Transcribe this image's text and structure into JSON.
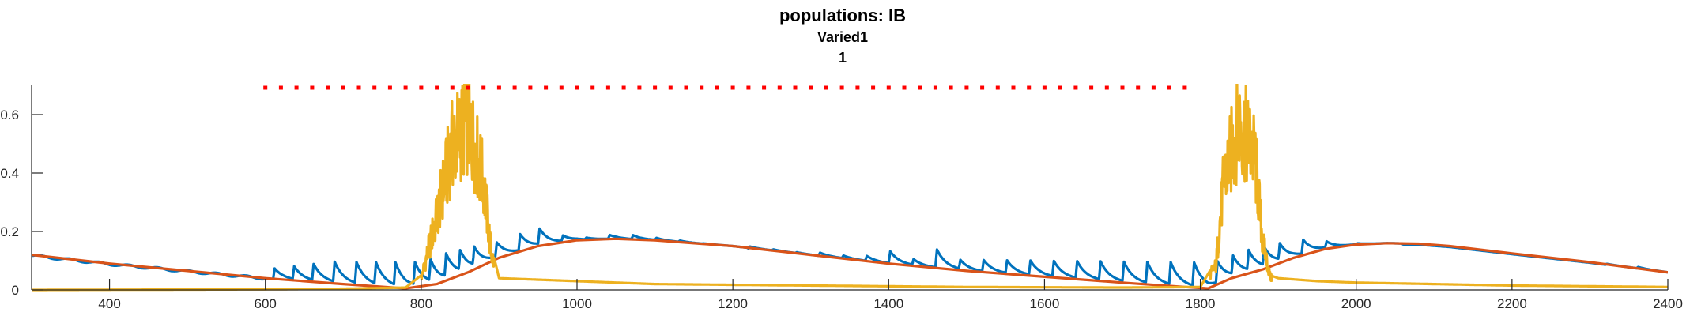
{
  "chart_data": {
    "type": "line",
    "title": "populations: IB",
    "subtitle_lines": [
      "Varied1",
      "1"
    ],
    "xlim": [
      300,
      2400
    ],
    "ylim": [
      0,
      0.7
    ],
    "x_ticks": [
      400,
      600,
      800,
      1000,
      1200,
      1400,
      1600,
      1800,
      2000,
      2200,
      2400
    ],
    "x_tick_labels": [
      "400",
      "600",
      "800",
      "1000",
      "1200",
      "1400",
      "1600",
      "1800",
      "2000",
      "2200",
      "2400"
    ],
    "y_ticks": [
      0,
      0.2,
      0.4,
      0.6
    ],
    "y_tick_labels": [
      "0",
      "0.2",
      "0.4",
      "0.6"
    ],
    "grid": false,
    "series": [
      {
        "color": "#0072BD",
        "style": "sawtooth-spikes",
        "spike_times": [
          610,
          635,
          660,
          687,
          715,
          740,
          765,
          790,
          810,
          830,
          848,
          866,
          895,
          925,
          950,
          980,
          1010,
          1040,
          1070,
          1100,
          1130,
          1160,
          1190,
          1220,
          1250,
          1280,
          1310,
          1340,
          1370,
          1400,
          1430,
          1460,
          1490,
          1520,
          1550,
          1580,
          1610,
          1640,
          1670,
          1700,
          1730,
          1760,
          1790,
          1820,
          1840,
          1860,
          1880,
          1900,
          1930,
          1960,
          2000,
          2040,
          2080,
          2120,
          2160,
          2200,
          2240,
          2280,
          2320,
          2360
        ],
        "spike_peaks": [
          0.08,
          0.09,
          0.1,
          0.11,
          0.11,
          0.11,
          0.11,
          0.11,
          0.12,
          0.14,
          0.15,
          0.16,
          0.17,
          0.2,
          0.22,
          0.19,
          0.18,
          0.19,
          0.19,
          0.18,
          0.17,
          0.16,
          0.15,
          0.15,
          0.14,
          0.13,
          0.13,
          0.12,
          0.12,
          0.14,
          0.11,
          0.15,
          0.11,
          0.11,
          0.11,
          0.11,
          0.11,
          0.11,
          0.11,
          0.11,
          0.11,
          0.11,
          0.11,
          0.11,
          0.13,
          0.15,
          0.16,
          0.17,
          0.18,
          0.17,
          0.16,
          0.16,
          0.15,
          0.14,
          0.13,
          0.12,
          0.11,
          0.1,
          0.09,
          0.08
        ]
      },
      {
        "color": "#D95319",
        "style": "smooth",
        "x": [
          300,
          400,
          500,
          600,
          700,
          780,
          820,
          860,
          900,
          950,
          1000,
          1050,
          1100,
          1200,
          1300,
          1400,
          1500,
          1600,
          1700,
          1780,
          1810,
          1840,
          1880,
          1920,
          1960,
          2000,
          2040,
          2080,
          2120,
          2200,
          2300,
          2400
        ],
        "y": [
          0.12,
          0.09,
          0.065,
          0.04,
          0.02,
          0.005,
          0.02,
          0.06,
          0.11,
          0.15,
          0.17,
          0.175,
          0.17,
          0.15,
          0.12,
          0.09,
          0.065,
          0.045,
          0.025,
          0.01,
          0.005,
          0.04,
          0.07,
          0.11,
          0.14,
          0.155,
          0.16,
          0.158,
          0.15,
          0.125,
          0.095,
          0.06
        ]
      },
      {
        "color": "#EDB120",
        "style": "bursts",
        "x": [
          300,
          600,
          700,
          780,
          800,
          820,
          840,
          860,
          880,
          890,
          900,
          950,
          1000,
          1100,
          1300,
          1500,
          1700,
          1800,
          1820,
          1830,
          1850,
          1870,
          1880,
          1890,
          1900,
          1950,
          2000,
          2200,
          2400
        ],
        "y": [
          0,
          0.002,
          0.004,
          0.008,
          0.05,
          0.3,
          0.6,
          0.7,
          0.45,
          0.15,
          0.04,
          0.035,
          0.03,
          0.02,
          0.015,
          0.01,
          0.008,
          0.01,
          0.1,
          0.45,
          0.7,
          0.55,
          0.2,
          0.05,
          0.04,
          0.03,
          0.025,
          0.015,
          0.01
        ]
      },
      {
        "color": "#FF0000",
        "style": "dotted-marker-line",
        "x": [
          600,
          1785
        ],
        "y": [
          0.7,
          0.7
        ]
      }
    ]
  }
}
